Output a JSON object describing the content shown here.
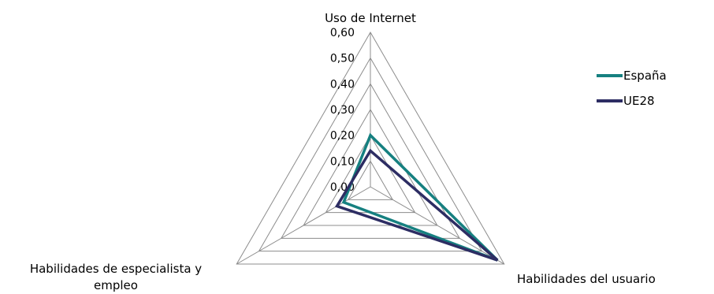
{
  "chart_data": {
    "type": "radar",
    "categories": [
      "Uso de Internet",
      "Habilidades del usuario",
      "Habilidades de especialista y empleo"
    ],
    "rlim": [
      0,
      0.6
    ],
    "ticks": [
      "0,00",
      "0,10",
      "0,20",
      "0,30",
      "0,40",
      "0,50",
      "0,60"
    ],
    "grid": true,
    "legend_position": "right",
    "series": [
      {
        "name": "España",
        "color": "#168080",
        "values": [
          0.2,
          0.57,
          0.12
        ]
      },
      {
        "name": "UE28",
        "color": "#2d2d63",
        "values": [
          0.14,
          0.57,
          0.15
        ]
      }
    ]
  }
}
